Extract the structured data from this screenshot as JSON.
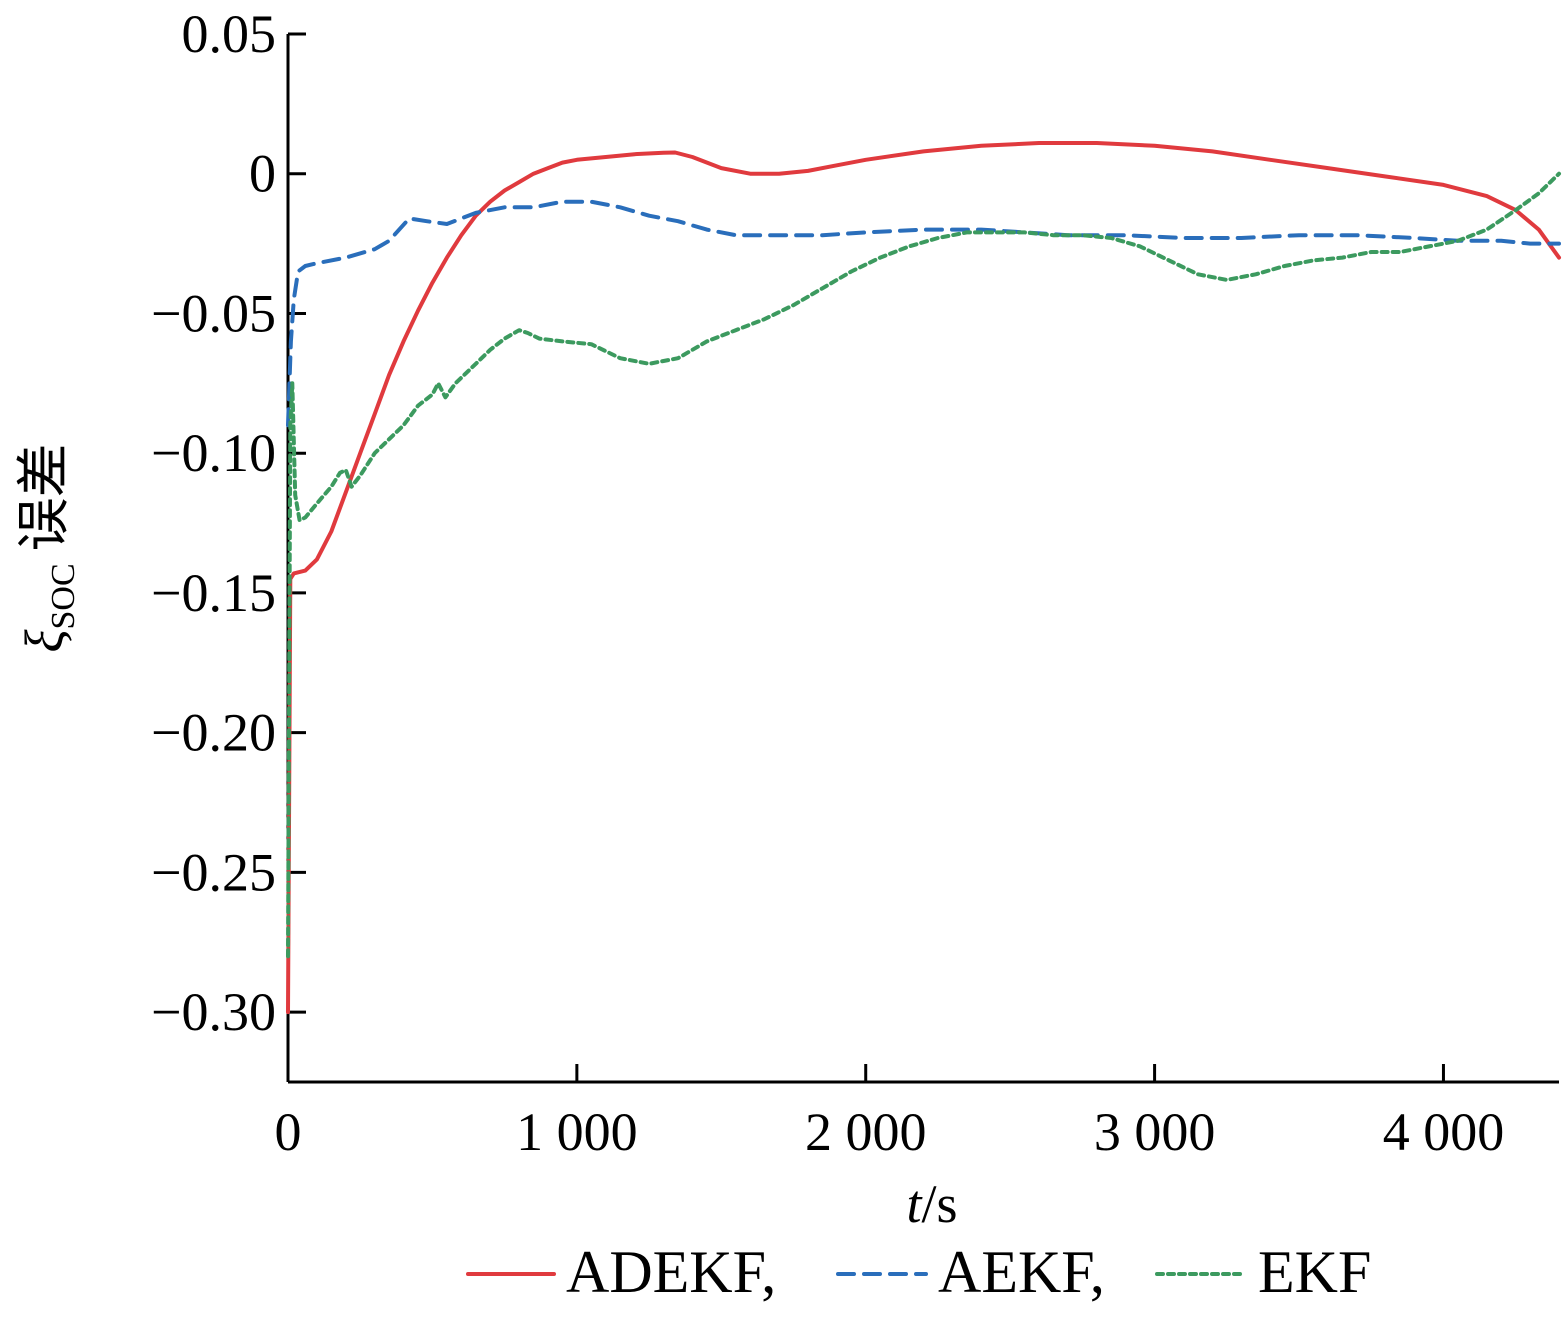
{
  "chart_data": {
    "type": "line",
    "xlabel": {
      "variable": "t",
      "separator": "/",
      "unit": "s"
    },
    "ylabel": {
      "symbol": "ξ",
      "subscript": "SOC",
      "suffix": "误差"
    },
    "xlim": [
      0,
      4400
    ],
    "ylim": [
      -0.325,
      0.05
    ],
    "xticks": [
      {
        "value": 0,
        "label": "0"
      },
      {
        "value": 1000,
        "label": "1 000"
      },
      {
        "value": 2000,
        "label": "2 000"
      },
      {
        "value": 3000,
        "label": "3 000"
      },
      {
        "value": 4000,
        "label": "4 000"
      }
    ],
    "yticks": [
      {
        "value": 0.05,
        "label": "0.05"
      },
      {
        "value": 0,
        "label": "0"
      },
      {
        "value": -0.05,
        "label": "−0.05"
      },
      {
        "value": -0.1,
        "label": "−0.10"
      },
      {
        "value": -0.15,
        "label": "−0.15"
      },
      {
        "value": -0.2,
        "label": "−0.20"
      },
      {
        "value": -0.25,
        "label": "−0.25"
      },
      {
        "value": -0.3,
        "label": "−0.30"
      }
    ],
    "grid": false,
    "legend_position": "bottom",
    "series": [
      {
        "name": "ADEKF,",
        "color": "#e03a3e",
        "dash": "solid",
        "points": [
          [
            0,
            -0.3
          ],
          [
            8,
            -0.145
          ],
          [
            20,
            -0.143
          ],
          [
            60,
            -0.142
          ],
          [
            100,
            -0.138
          ],
          [
            150,
            -0.128
          ],
          [
            200,
            -0.114
          ],
          [
            250,
            -0.1
          ],
          [
            300,
            -0.086
          ],
          [
            350,
            -0.072
          ],
          [
            400,
            -0.06
          ],
          [
            450,
            -0.049
          ],
          [
            500,
            -0.039
          ],
          [
            550,
            -0.03
          ],
          [
            600,
            -0.022
          ],
          [
            650,
            -0.015
          ],
          [
            700,
            -0.01
          ],
          [
            750,
            -0.006
          ],
          [
            800,
            -0.003
          ],
          [
            850,
            0.0
          ],
          [
            900,
            0.002
          ],
          [
            950,
            0.004
          ],
          [
            1000,
            0.005
          ],
          [
            1100,
            0.006
          ],
          [
            1200,
            0.007
          ],
          [
            1300,
            0.0075
          ],
          [
            1340,
            0.0076
          ],
          [
            1400,
            0.006
          ],
          [
            1500,
            0.002
          ],
          [
            1600,
            0.0
          ],
          [
            1700,
            0.0
          ],
          [
            1800,
            0.001
          ],
          [
            1900,
            0.003
          ],
          [
            2000,
            0.005
          ],
          [
            2200,
            0.008
          ],
          [
            2400,
            0.01
          ],
          [
            2600,
            0.011
          ],
          [
            2800,
            0.011
          ],
          [
            3000,
            0.01
          ],
          [
            3200,
            0.008
          ],
          [
            3400,
            0.005
          ],
          [
            3600,
            0.002
          ],
          [
            3800,
            -0.001
          ],
          [
            4000,
            -0.004
          ],
          [
            4150,
            -0.008
          ],
          [
            4250,
            -0.013
          ],
          [
            4330,
            -0.02
          ],
          [
            4400,
            -0.03
          ]
        ]
      },
      {
        "name": "AEKF,",
        "color": "#2a6ebb",
        "dash": "dashed",
        "points": [
          [
            0,
            -0.09
          ],
          [
            10,
            -0.06
          ],
          [
            20,
            -0.045
          ],
          [
            35,
            -0.035
          ],
          [
            60,
            -0.033
          ],
          [
            100,
            -0.032
          ],
          [
            200,
            -0.03
          ],
          [
            300,
            -0.027
          ],
          [
            350,
            -0.024
          ],
          [
            420,
            -0.016
          ],
          [
            480,
            -0.017
          ],
          [
            550,
            -0.018
          ],
          [
            650,
            -0.014
          ],
          [
            750,
            -0.012
          ],
          [
            850,
            -0.012
          ],
          [
            950,
            -0.01
          ],
          [
            1050,
            -0.01
          ],
          [
            1150,
            -0.012
          ],
          [
            1250,
            -0.015
          ],
          [
            1350,
            -0.017
          ],
          [
            1450,
            -0.02
          ],
          [
            1550,
            -0.022
          ],
          [
            1700,
            -0.022
          ],
          [
            1850,
            -0.022
          ],
          [
            2000,
            -0.021
          ],
          [
            2200,
            -0.02
          ],
          [
            2400,
            -0.02
          ],
          [
            2550,
            -0.021
          ],
          [
            2700,
            -0.022
          ],
          [
            2900,
            -0.022
          ],
          [
            3100,
            -0.023
          ],
          [
            3300,
            -0.023
          ],
          [
            3500,
            -0.022
          ],
          [
            3700,
            -0.022
          ],
          [
            3900,
            -0.023
          ],
          [
            4050,
            -0.024
          ],
          [
            4200,
            -0.024
          ],
          [
            4300,
            -0.025
          ],
          [
            4400,
            -0.025
          ]
        ]
      },
      {
        "name": "EKF",
        "color": "#3c9a5f",
        "dash": "dotted",
        "points": [
          [
            0,
            -0.28
          ],
          [
            8,
            -0.09
          ],
          [
            15,
            -0.075
          ],
          [
            25,
            -0.115
          ],
          [
            40,
            -0.124
          ],
          [
            60,
            -0.123
          ],
          [
            100,
            -0.118
          ],
          [
            150,
            -0.112
          ],
          [
            180,
            -0.107
          ],
          [
            200,
            -0.106
          ],
          [
            220,
            -0.112
          ],
          [
            250,
            -0.108
          ],
          [
            300,
            -0.1
          ],
          [
            350,
            -0.095
          ],
          [
            400,
            -0.09
          ],
          [
            450,
            -0.083
          ],
          [
            500,
            -0.079
          ],
          [
            520,
            -0.075
          ],
          [
            545,
            -0.08
          ],
          [
            580,
            -0.075
          ],
          [
            650,
            -0.068
          ],
          [
            700,
            -0.063
          ],
          [
            750,
            -0.059
          ],
          [
            800,
            -0.056
          ],
          [
            830,
            -0.057
          ],
          [
            870,
            -0.059
          ],
          [
            950,
            -0.06
          ],
          [
            1050,
            -0.061
          ],
          [
            1150,
            -0.066
          ],
          [
            1250,
            -0.068
          ],
          [
            1350,
            -0.066
          ],
          [
            1450,
            -0.06
          ],
          [
            1550,
            -0.056
          ],
          [
            1650,
            -0.052
          ],
          [
            1750,
            -0.047
          ],
          [
            1850,
            -0.041
          ],
          [
            1950,
            -0.035
          ],
          [
            2050,
            -0.03
          ],
          [
            2150,
            -0.026
          ],
          [
            2250,
            -0.023
          ],
          [
            2350,
            -0.021
          ],
          [
            2450,
            -0.021
          ],
          [
            2550,
            -0.021
          ],
          [
            2650,
            -0.022
          ],
          [
            2750,
            -0.022
          ],
          [
            2850,
            -0.023
          ],
          [
            2950,
            -0.026
          ],
          [
            3050,
            -0.031
          ],
          [
            3150,
            -0.036
          ],
          [
            3250,
            -0.038
          ],
          [
            3350,
            -0.036
          ],
          [
            3450,
            -0.033
          ],
          [
            3550,
            -0.031
          ],
          [
            3650,
            -0.03
          ],
          [
            3750,
            -0.028
          ],
          [
            3850,
            -0.028
          ],
          [
            3950,
            -0.026
          ],
          [
            4050,
            -0.024
          ],
          [
            4150,
            -0.02
          ],
          [
            4250,
            -0.013
          ],
          [
            4330,
            -0.007
          ],
          [
            4400,
            0.0
          ]
        ]
      }
    ]
  }
}
